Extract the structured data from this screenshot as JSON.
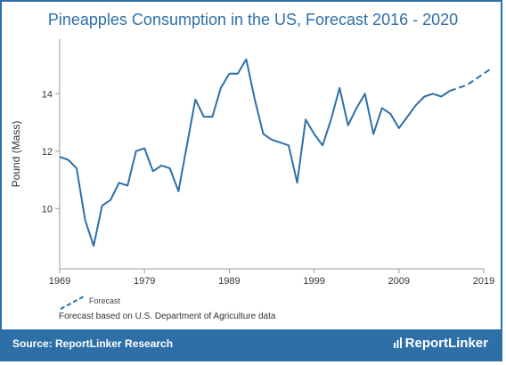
{
  "title": "Pineapples Consumption in the US, Forecast 2016 - 2020",
  "legend": {
    "forecast_label": "Forecast"
  },
  "note": "Forecast based on U.S. Department of Agriculture data",
  "footer": {
    "source": "Source: ReportLinker Research",
    "brand": "ReportLinker"
  },
  "colors": {
    "accent": "#2e6fa7",
    "line": "#2e6fa7",
    "footer_bg": "#2e6fa7"
  },
  "chart_data": {
    "type": "line",
    "ylabel": "Pound (Mass)",
    "xlim": [
      1969,
      2019
    ],
    "ylim": [
      7.9,
      15.9
    ],
    "x_ticks": [
      1969,
      1979,
      1989,
      1999,
      2009,
      2019
    ],
    "y_ticks": [
      10,
      12,
      14
    ],
    "grid": false,
    "series": [
      {
        "name": "",
        "style": "solid",
        "x": [
          1969,
          1970,
          1971,
          1972,
          1973,
          1974,
          1975,
          1976,
          1977,
          1978,
          1979,
          1980,
          1981,
          1982,
          1983,
          1984,
          1985,
          1986,
          1987,
          1988,
          1989,
          1990,
          1991,
          1992,
          1993,
          1994,
          1995,
          1996,
          1997,
          1998,
          1999,
          2000,
          2001,
          2002,
          2003,
          2004,
          2005,
          2006,
          2007,
          2008,
          2009,
          2010,
          2011,
          2012,
          2013,
          2014,
          2015
        ],
        "y": [
          11.8,
          11.7,
          11.4,
          9.6,
          8.7,
          10.1,
          10.3,
          10.9,
          10.8,
          12.0,
          12.1,
          11.3,
          11.5,
          11.4,
          10.6,
          12.2,
          13.8,
          13.2,
          13.2,
          14.2,
          14.7,
          14.7,
          15.2,
          13.8,
          12.6,
          12.4,
          12.3,
          12.2,
          10.9,
          13.1,
          12.6,
          12.2,
          13.1,
          14.2,
          12.9,
          13.5,
          14.0,
          12.6,
          13.5,
          13.3,
          12.8,
          13.2,
          13.6,
          13.9,
          14.0,
          13.9,
          14.1
        ]
      },
      {
        "name": "Forecast",
        "style": "dashed",
        "x": [
          2015,
          2016,
          2017,
          2018,
          2019,
          2020
        ],
        "y": [
          14.1,
          14.2,
          14.3,
          14.5,
          14.7,
          14.9
        ]
      }
    ]
  }
}
